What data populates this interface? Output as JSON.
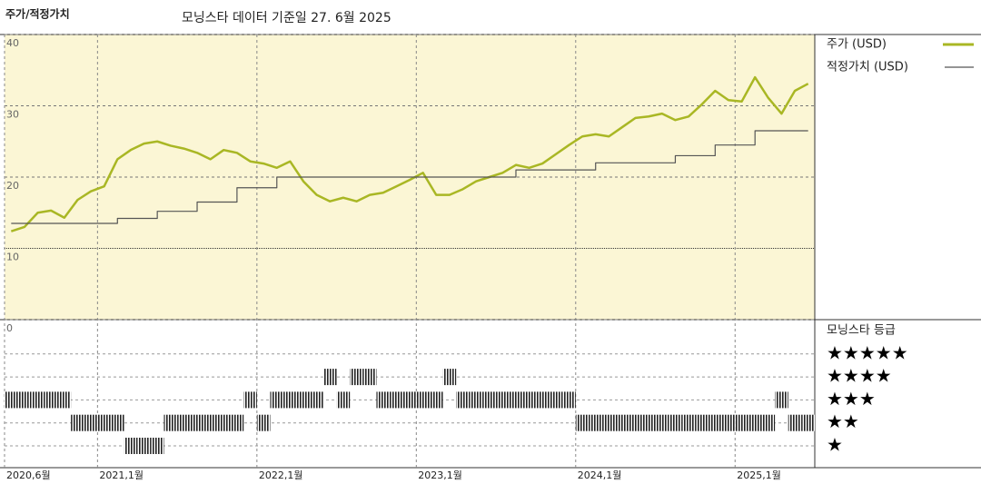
{
  "chart_data": {
    "type": "line",
    "title": "주가/적정가치",
    "subtitle": "모닝스타 데이터 기준일 27. 6월 2025",
    "x": [
      "2020-06",
      "2020-07",
      "2020-08",
      "2020-09",
      "2020-10",
      "2020-11",
      "2020-12",
      "2021-01",
      "2021-02",
      "2021-03",
      "2021-04",
      "2021-05",
      "2021-06",
      "2021-07",
      "2021-08",
      "2021-09",
      "2021-10",
      "2021-11",
      "2021-12",
      "2022-01",
      "2022-02",
      "2022-03",
      "2022-04",
      "2022-05",
      "2022-06",
      "2022-07",
      "2022-08",
      "2022-09",
      "2022-10",
      "2022-11",
      "2022-12",
      "2023-01",
      "2023-02",
      "2023-03",
      "2023-04",
      "2023-05",
      "2023-06",
      "2023-07",
      "2023-08",
      "2023-09",
      "2023-10",
      "2023-11",
      "2023-12",
      "2024-01",
      "2024-02",
      "2024-03",
      "2024-04",
      "2024-05",
      "2024-06",
      "2024-07",
      "2024-08",
      "2024-09",
      "2024-10",
      "2024-11",
      "2024-12",
      "2025-01",
      "2025-02",
      "2025-03",
      "2025-04",
      "2025-05",
      "2025-06"
    ],
    "xticks": [
      {
        "value": "2020-06",
        "label": "2020,6월"
      },
      {
        "value": "2021-01",
        "label": "2021,1월"
      },
      {
        "value": "2022-01",
        "label": "2022,1월"
      },
      {
        "value": "2023-01",
        "label": "2023,1월"
      },
      {
        "value": "2024-01",
        "label": "2024,1월"
      },
      {
        "value": "2025-01",
        "label": "2025,1월"
      }
    ],
    "ylim": [
      0,
      40
    ],
    "yticks": [
      0,
      10,
      20,
      30,
      40
    ],
    "series": [
      {
        "name": "주가 (USD)",
        "color": "#a9b724",
        "values": [
          12.4,
          13,
          15,
          15.3,
          14.3,
          16.8,
          18,
          18.7,
          22.5,
          23.8,
          24.7,
          25,
          24.4,
          24,
          23.4,
          22.5,
          23.8,
          23.4,
          22.2,
          21.9,
          21.3,
          22.2,
          19.4,
          17.5,
          16.6,
          17.1,
          16.6,
          17.5,
          17.8,
          18.7,
          19.6,
          20.6,
          17.5,
          17.5,
          18.3,
          19.4,
          20,
          20.6,
          21.7,
          21.3,
          21.9,
          23.2,
          24.5,
          25.7,
          26,
          25.7,
          27,
          28.3,
          28.5,
          28.9,
          28,
          28.5,
          30.2,
          32.1,
          30.8,
          30.6,
          34,
          31.1,
          28.9,
          32.1,
          33.1
        ]
      },
      {
        "name": "적정가치 (USD)",
        "color": "#555555",
        "values": [
          13.5,
          13.5,
          13.5,
          13.5,
          13.5,
          13.5,
          13.5,
          13.5,
          14.2,
          14.2,
          14.2,
          15.2,
          15.2,
          15.2,
          16.5,
          16.5,
          16.5,
          18.5,
          18.5,
          18.5,
          20,
          20,
          20,
          20,
          20,
          20,
          20,
          20,
          20,
          20,
          20,
          20,
          20,
          20,
          20,
          20,
          20,
          20,
          21,
          21,
          21,
          21,
          21,
          21,
          22,
          22,
          22,
          22,
          22,
          22,
          23,
          23,
          23,
          24.5,
          24.5,
          24.5,
          26.5,
          26.5,
          26.5,
          26.5,
          26.5
        ]
      }
    ],
    "ratings": {
      "title": "모닝스타 등급",
      "labels": [
        "★",
        "★★",
        "★★★",
        "★★★★",
        "★★★★★"
      ],
      "values": [
        3,
        3,
        3,
        3,
        3,
        2,
        2,
        2,
        2,
        1,
        1,
        1,
        2,
        2,
        2,
        2,
        2,
        2,
        3,
        2,
        3,
        3,
        3,
        3,
        4,
        3,
        4,
        4,
        3,
        3,
        3,
        3,
        3,
        4,
        3,
        3,
        3,
        3,
        3,
        3,
        3,
        3,
        3,
        2,
        2,
        2,
        2,
        2,
        2,
        2,
        2,
        2,
        2,
        2,
        2,
        2,
        2,
        2,
        3,
        2,
        2
      ]
    }
  }
}
